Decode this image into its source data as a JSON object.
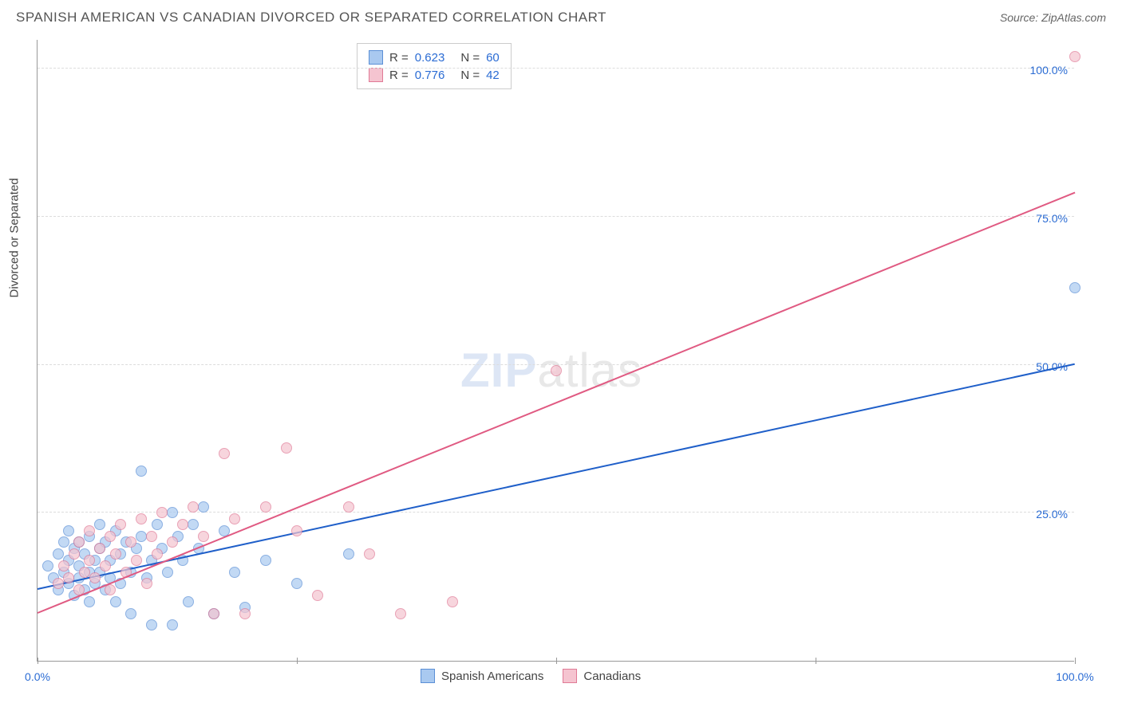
{
  "header": {
    "title": "SPANISH AMERICAN VS CANADIAN DIVORCED OR SEPARATED CORRELATION CHART",
    "source": "Source: ZipAtlas.com"
  },
  "chart": {
    "type": "scatter",
    "yaxis_title": "Divorced or Separated",
    "xlim": [
      0,
      100
    ],
    "ylim": [
      0,
      105
    ],
    "xticks": [
      0,
      25,
      50,
      75,
      100
    ],
    "yticks": [
      25,
      50,
      75,
      100
    ],
    "xtick_labels": [
      "0.0%",
      "",
      "",
      "",
      "100.0%"
    ],
    "ytick_labels": [
      "25.0%",
      "50.0%",
      "75.0%",
      "100.0%"
    ],
    "xtick_color_left": "#2b6cd4",
    "xtick_color_right": "#2b6cd4",
    "ytick_color": "#2b6cd4",
    "grid_color": "#dddddd",
    "background_color": "#ffffff",
    "axis_color": "#999999",
    "series": [
      {
        "name": "Spanish Americans",
        "fill": "#a9c9f0",
        "stroke": "#5b8fd6",
        "trend_color": "#1f5fc9",
        "R": "0.623",
        "N": "60",
        "trend": {
          "x1": 0,
          "y1": 12,
          "x2": 100,
          "y2": 50
        },
        "points": [
          [
            1,
            16
          ],
          [
            1.5,
            14
          ],
          [
            2,
            18
          ],
          [
            2,
            12
          ],
          [
            2.5,
            15
          ],
          [
            2.5,
            20
          ],
          [
            3,
            13
          ],
          [
            3,
            17
          ],
          [
            3,
            22
          ],
          [
            3.5,
            11
          ],
          [
            3.5,
            19
          ],
          [
            4,
            14
          ],
          [
            4,
            16
          ],
          [
            4,
            20
          ],
          [
            4.5,
            12
          ],
          [
            4.5,
            18
          ],
          [
            5,
            15
          ],
          [
            5,
            21
          ],
          [
            5,
            10
          ],
          [
            5.5,
            17
          ],
          [
            5.5,
            13
          ],
          [
            6,
            19
          ],
          [
            6,
            23
          ],
          [
            6,
            15
          ],
          [
            6.5,
            12
          ],
          [
            6.5,
            20
          ],
          [
            7,
            17
          ],
          [
            7,
            14
          ],
          [
            7.5,
            22
          ],
          [
            7.5,
            10
          ],
          [
            8,
            18
          ],
          [
            8,
            13
          ],
          [
            8.5,
            20
          ],
          [
            9,
            15
          ],
          [
            9,
            8
          ],
          [
            9.5,
            19
          ],
          [
            10,
            32
          ],
          [
            10,
            21
          ],
          [
            10.5,
            14
          ],
          [
            11,
            17
          ],
          [
            11,
            6
          ],
          [
            11.5,
            23
          ],
          [
            12,
            19
          ],
          [
            12.5,
            15
          ],
          [
            13,
            25
          ],
          [
            13,
            6
          ],
          [
            13.5,
            21
          ],
          [
            14,
            17
          ],
          [
            14.5,
            10
          ],
          [
            15,
            23
          ],
          [
            15.5,
            19
          ],
          [
            16,
            26
          ],
          [
            17,
            8
          ],
          [
            18,
            22
          ],
          [
            19,
            15
          ],
          [
            20,
            9
          ],
          [
            22,
            17
          ],
          [
            25,
            13
          ],
          [
            30,
            18
          ],
          [
            100,
            63
          ]
        ]
      },
      {
        "name": "Canadians",
        "fill": "#f5c4d0",
        "stroke": "#e07a96",
        "trend_color": "#e05a82",
        "R": "0.776",
        "N": "42",
        "trend": {
          "x1": 0,
          "y1": 8,
          "x2": 100,
          "y2": 79
        },
        "points": [
          [
            2,
            13
          ],
          [
            2.5,
            16
          ],
          [
            3,
            14
          ],
          [
            3.5,
            18
          ],
          [
            4,
            12
          ],
          [
            4,
            20
          ],
          [
            4.5,
            15
          ],
          [
            5,
            17
          ],
          [
            5,
            22
          ],
          [
            5.5,
            14
          ],
          [
            6,
            19
          ],
          [
            6.5,
            16
          ],
          [
            7,
            21
          ],
          [
            7,
            12
          ],
          [
            7.5,
            18
          ],
          [
            8,
            23
          ],
          [
            8.5,
            15
          ],
          [
            9,
            20
          ],
          [
            9.5,
            17
          ],
          [
            10,
            24
          ],
          [
            10.5,
            13
          ],
          [
            11,
            21
          ],
          [
            11.5,
            18
          ],
          [
            12,
            25
          ],
          [
            13,
            20
          ],
          [
            14,
            23
          ],
          [
            15,
            26
          ],
          [
            16,
            21
          ],
          [
            17,
            8
          ],
          [
            18,
            35
          ],
          [
            19,
            24
          ],
          [
            20,
            8
          ],
          [
            22,
            26
          ],
          [
            24,
            36
          ],
          [
            25,
            22
          ],
          [
            27,
            11
          ],
          [
            30,
            26
          ],
          [
            32,
            18
          ],
          [
            35,
            8
          ],
          [
            40,
            10
          ],
          [
            50,
            49
          ],
          [
            100,
            102
          ]
        ]
      }
    ],
    "legend_top_labels": {
      "R": "R =",
      "N": "N ="
    },
    "watermark": {
      "zip": "ZIP",
      "atlas": "atlas"
    }
  }
}
